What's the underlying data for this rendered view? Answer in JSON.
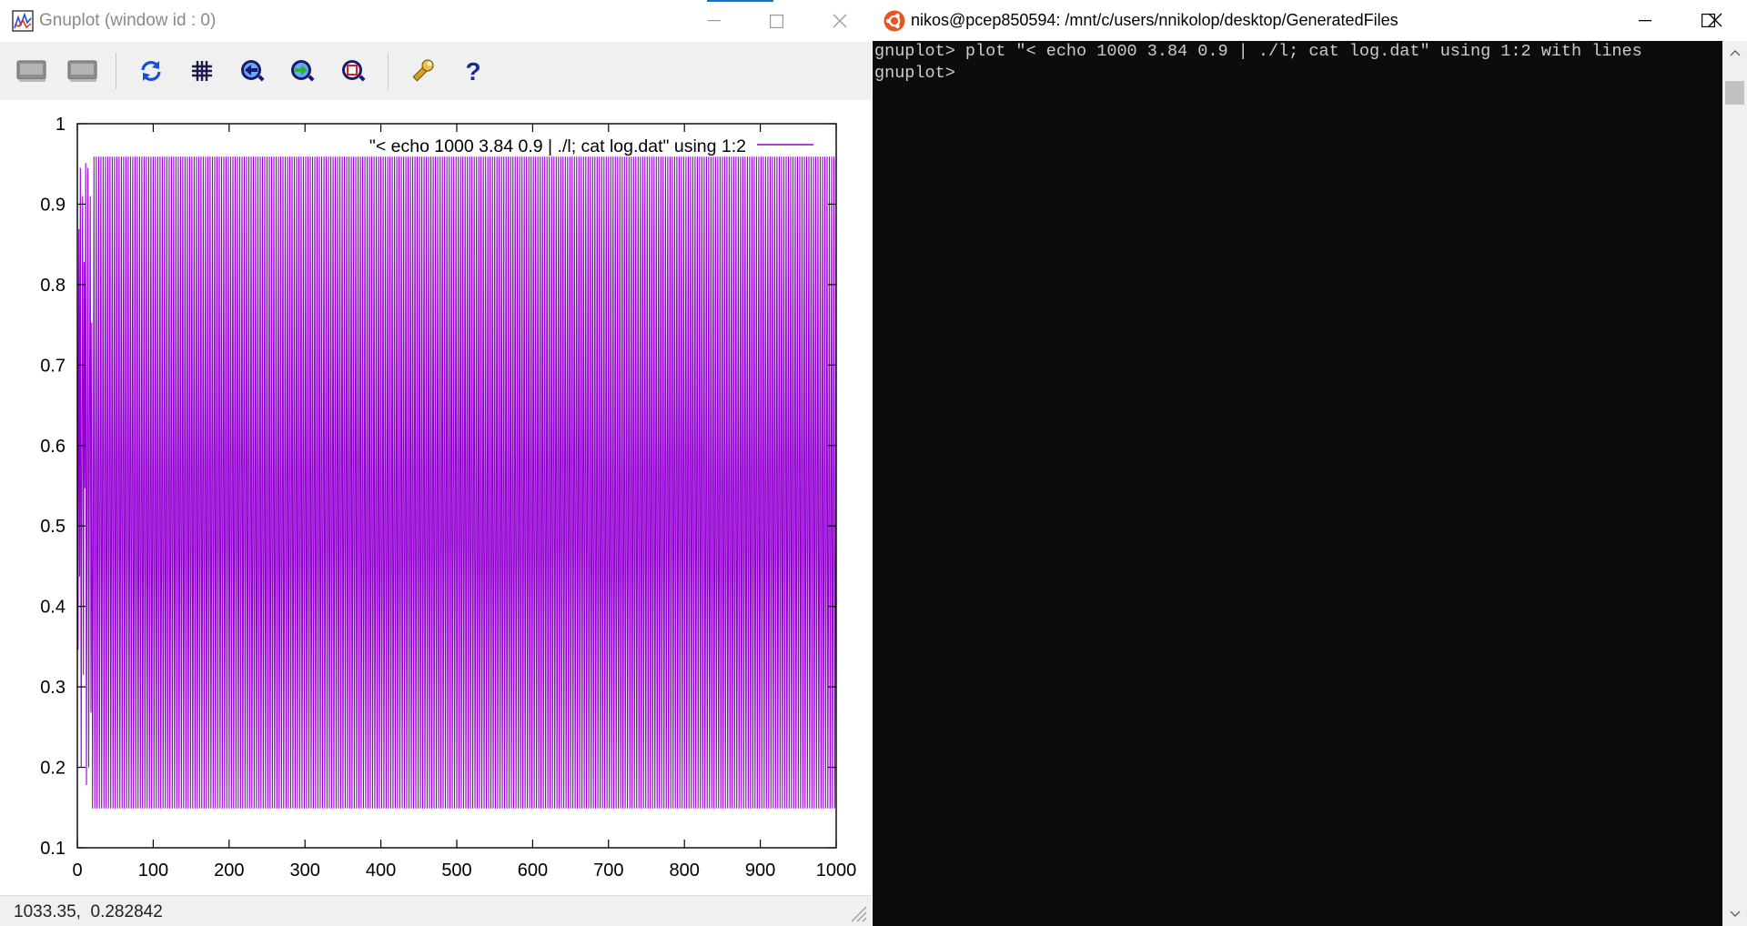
{
  "gnuplot_window": {
    "title": "Gnuplot (window id : 0)",
    "toolbar": [
      {
        "name": "copy-to-clipboard-icon"
      },
      {
        "name": "print-icon"
      },
      {
        "name": "replot-icon"
      },
      {
        "name": "grid-icon"
      },
      {
        "name": "previous-zoom-icon"
      },
      {
        "name": "next-zoom-icon"
      },
      {
        "name": "autoscale-icon"
      },
      {
        "name": "options-wrench-icon"
      },
      {
        "name": "help-icon"
      }
    ],
    "status": "1033.35,  0.282842"
  },
  "terminal_window": {
    "title": "nikos@pcep850594: /mnt/c/users/nnikolop/desktop/GeneratedFiles",
    "lines": [
      "gnuplot> plot \"< echo 1000 3.84 0.9 | ./l; cat log.dat\" using 1:2 with lines",
      "gnuplot> "
    ]
  },
  "colors": {
    "series": "#9400d3",
    "terminal_bg": "#0c0c0c",
    "terminal_fg": "#cccccc",
    "accent": "#0078d7"
  },
  "chart_data": {
    "type": "line",
    "title": "",
    "xlabel": "",
    "ylabel": "",
    "xlim": [
      0,
      1000
    ],
    "ylim": [
      0.1,
      1
    ],
    "x_ticks": [
      "0",
      "100",
      "200",
      "300",
      "400",
      "500",
      "600",
      "700",
      "800",
      "900",
      "1000"
    ],
    "y_ticks": [
      "0.1",
      "0.2",
      "0.3",
      "0.4",
      "0.5",
      "0.6",
      "0.7",
      "0.8",
      "0.9",
      "1"
    ],
    "grid": false,
    "legend_position": "top-right",
    "series": [
      {
        "name": "\"< echo 1000 3.84 0.9 | ./l; cat log.dat\" using 1:2",
        "transient_values": [
          0.9,
          0.346,
          0.869,
          0.437,
          0.945,
          0.2,
          0.615,
          0.91,
          0.315,
          0.828,
          0.547,
          0.951,
          0.178,
          0.562,
          0.945,
          0.2,
          0.615,
          0.91,
          0.268,
          0.753
        ],
        "steady_cycle": [
          0.149,
          0.488,
          0.959
        ],
        "steady_from_x": 20
      }
    ]
  }
}
